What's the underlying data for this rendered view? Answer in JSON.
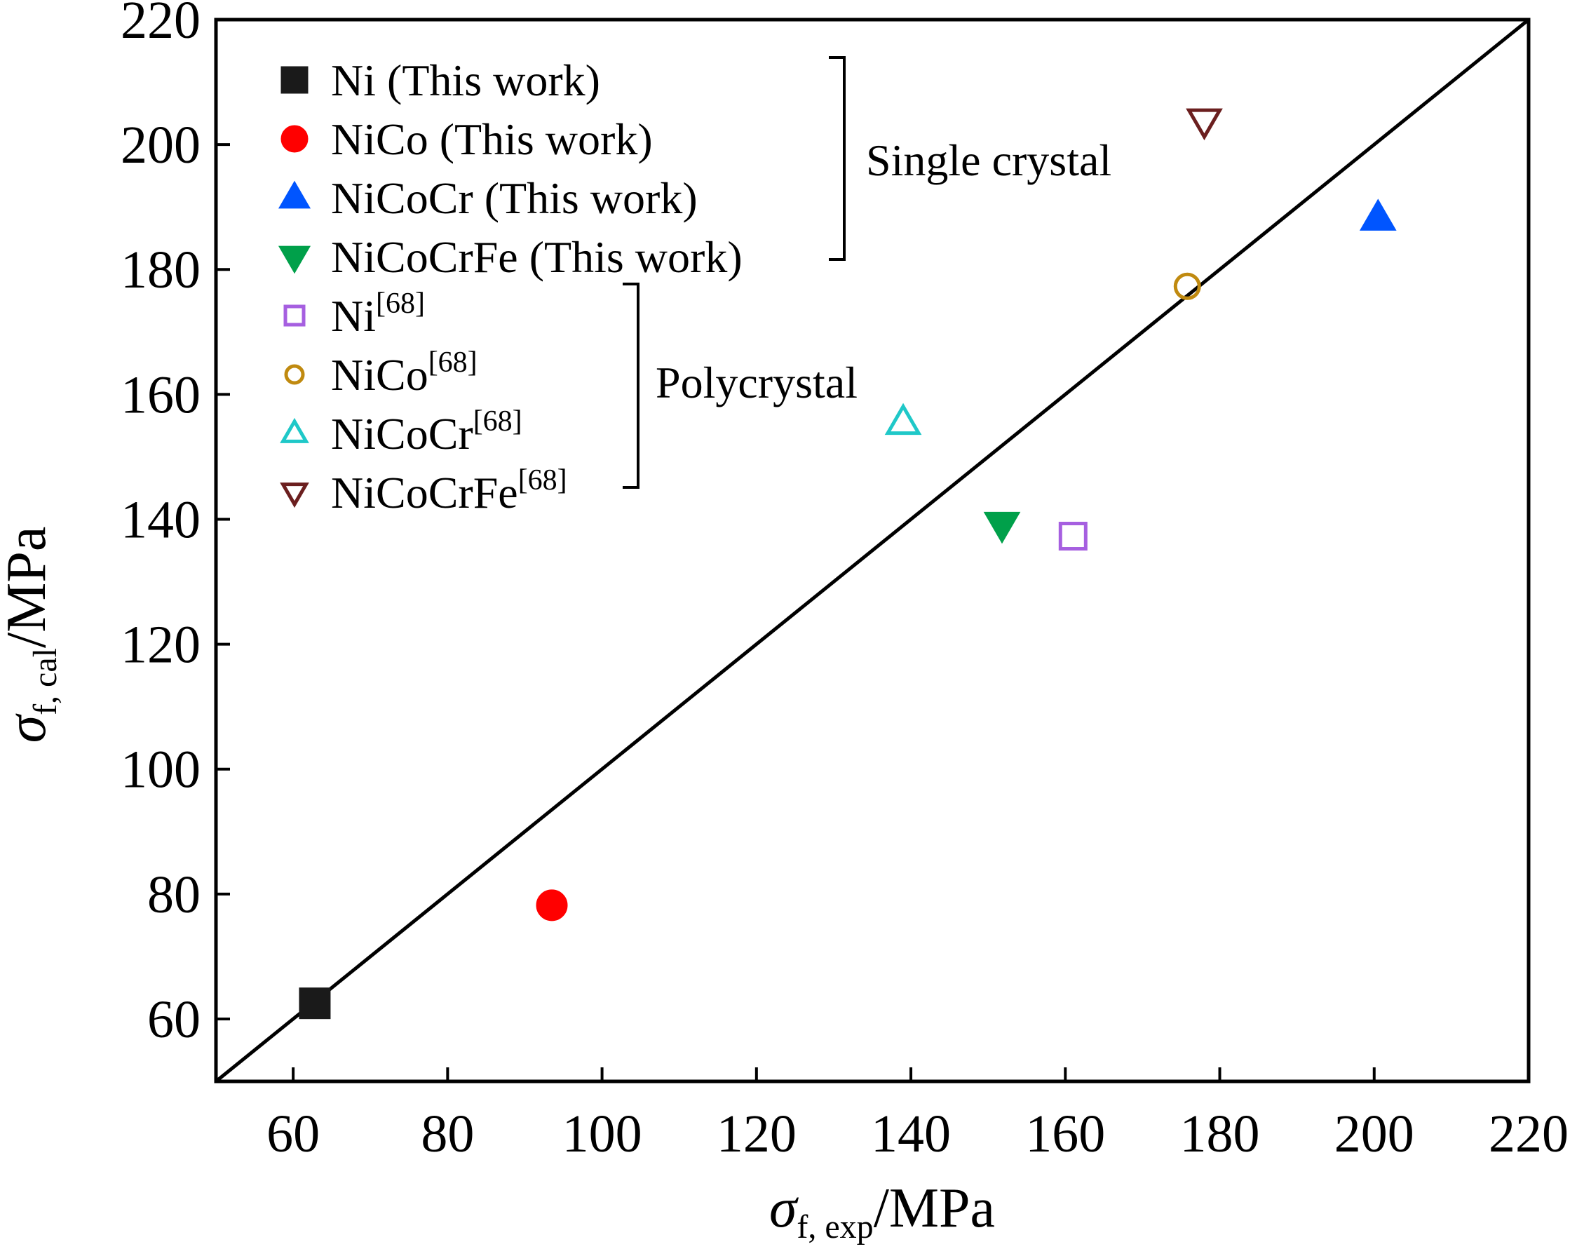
{
  "chart_data": {
    "type": "scatter",
    "xlim": [
      50,
      220
    ],
    "ylim": [
      50,
      220
    ],
    "x_ticks": [
      60,
      80,
      100,
      120,
      140,
      160,
      180,
      200,
      220
    ],
    "y_ticks": [
      60,
      80,
      100,
      120,
      140,
      160,
      180,
      200,
      220
    ],
    "xlabel": {
      "symbol": "σ",
      "sub": "f, exp",
      "unit": "/MPa"
    },
    "ylabel": {
      "symbol": "σ",
      "sub": "f, cal",
      "unit": "/MPa"
    },
    "reference_line": {
      "type": "y=x",
      "from": [
        50,
        50
      ],
      "to": [
        220,
        220
      ],
      "color": "#000000"
    },
    "grid": false,
    "legend_position": "top-left",
    "series": [
      {
        "name": "Ni (This work)",
        "main": "Ni",
        "suffix": " (This work)",
        "ref": "",
        "marker": "square",
        "filled": true,
        "color": "#1a1a1a",
        "x": [
          62.8
        ],
        "y": [
          62.5
        ],
        "group": "single"
      },
      {
        "name": "NiCo (This work)",
        "main": "NiCo",
        "suffix": " (This work)",
        "ref": "",
        "marker": "circle",
        "filled": true,
        "color": "#ff0000",
        "x": [
          93.5
        ],
        "y": [
          78.2
        ],
        "group": "single"
      },
      {
        "name": "NiCoCr (This work)",
        "main": "NiCoCr",
        "suffix": " (This work)",
        "ref": "",
        "marker": "triangle-up",
        "filled": true,
        "color": "#0055ff",
        "x": [
          200.5
        ],
        "y": [
          188.2
        ],
        "group": "single"
      },
      {
        "name": "NiCoCrFe (This work)",
        "main": "NiCoCrFe",
        "suffix": " (This work)",
        "ref": "",
        "marker": "triangle-down",
        "filled": true,
        "color": "#00a04a",
        "x": [
          151.8
        ],
        "y": [
          139.2
        ],
        "group": "single"
      },
      {
        "name": "Ni[68]",
        "main": "Ni",
        "suffix": "",
        "ref": "[68]",
        "marker": "square",
        "filled": false,
        "color": "#a65fe0",
        "x": [
          161.0
        ],
        "y": [
          137.3
        ],
        "group": "poly"
      },
      {
        "name": "NiCo[68]",
        "main": "NiCo",
        "suffix": "",
        "ref": "[68]",
        "marker": "circle",
        "filled": false,
        "color": "#c08a10",
        "x": [
          175.8
        ],
        "y": [
          177.3
        ],
        "group": "poly"
      },
      {
        "name": "NiCoCr[68]",
        "main": "NiCoCr",
        "suffix": "",
        "ref": "[68]",
        "marker": "triangle-up",
        "filled": false,
        "color": "#1fc8c8",
        "x": [
          139.0
        ],
        "y": [
          155.5
        ],
        "group": "poly"
      },
      {
        "name": "NiCoCrFe[68]",
        "main": "NiCoCrFe",
        "suffix": "",
        "ref": "[68]",
        "marker": "triangle-down",
        "filled": false,
        "color": "#6b1f1f",
        "x": [
          178.0
        ],
        "y": [
          203.8
        ],
        "group": "poly"
      }
    ],
    "annotations": [
      {
        "text": "Single crystal",
        "group": "single"
      },
      {
        "text": "Polycrystal",
        "group": "poly"
      }
    ]
  }
}
